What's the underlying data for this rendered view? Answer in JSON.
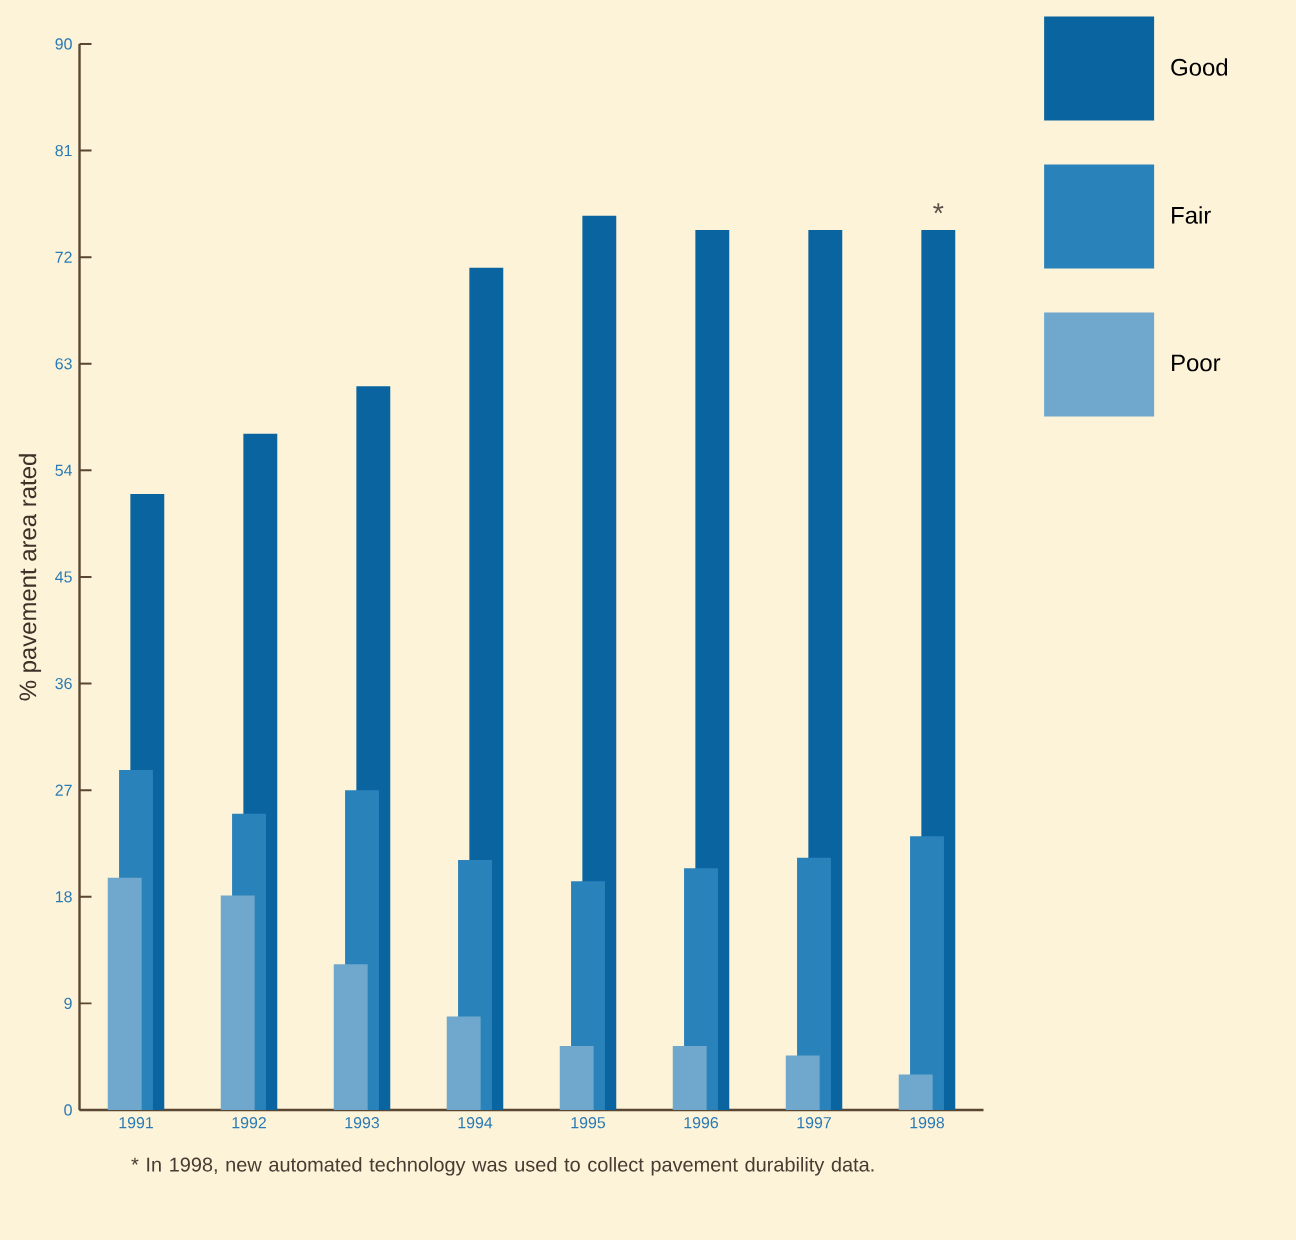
{
  "chart_data": {
    "type": "bar",
    "ylabel": "% pavement area rated",
    "categories": [
      "1991",
      "1992",
      "1993",
      "1994",
      "1995",
      "1996",
      "1997",
      "1998"
    ],
    "series": [
      {
        "name": "Good",
        "color": "#0a64a0",
        "values": [
          52.0,
          57.1,
          61.1,
          71.1,
          75.5,
          74.3,
          74.3,
          74.3
        ]
      },
      {
        "name": "Fair",
        "color": "#2a82bb",
        "values": [
          28.7,
          25.0,
          27.0,
          21.1,
          19.3,
          20.4,
          21.3,
          23.1
        ]
      },
      {
        "name": "Poor",
        "color": "#6fa8cc",
        "values": [
          19.6,
          18.1,
          12.3,
          7.9,
          5.4,
          5.4,
          4.6,
          3.0
        ]
      }
    ],
    "ylim": [
      0,
      90
    ],
    "yticks": [
      0,
      9,
      18,
      27,
      36,
      45,
      54,
      63,
      72,
      81,
      90
    ],
    "legend": "top right",
    "grid": false,
    "annotations": [
      {
        "text": "*",
        "x": "1998",
        "y": 74.3
      },
      "* In 1998, new automated technology was used to collect pavement durability data."
    ]
  }
}
